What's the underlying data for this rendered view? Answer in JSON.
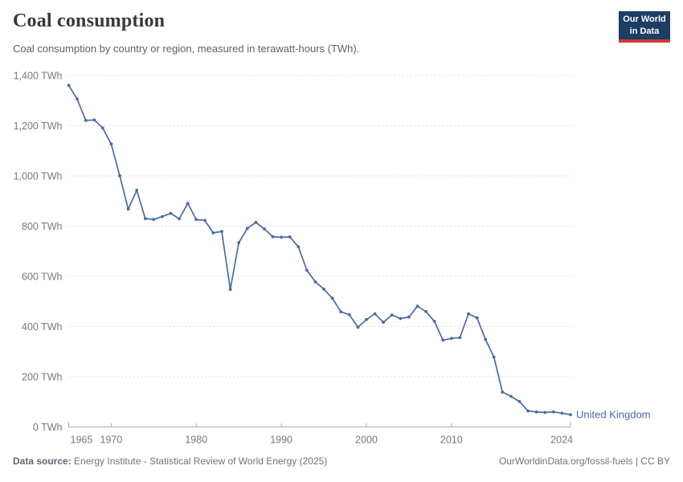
{
  "header": {
    "title": "Coal consumption",
    "subtitle": "Coal consumption by country or region, measured in terawatt-hours (TWh).",
    "logo": {
      "line1": "Our World",
      "line2": "in Data"
    }
  },
  "chart_data": {
    "type": "line",
    "title": "Coal consumption",
    "entity_label": "United Kingdom",
    "unit": "TWh",
    "xlabel": "",
    "ylabel": "TWh",
    "xlim": [
      1965,
      2024
    ],
    "ylim": [
      0,
      1400
    ],
    "xticks": [
      1965,
      1970,
      1980,
      1990,
      2000,
      2010,
      2024
    ],
    "yticks": [
      0,
      200,
      400,
      600,
      800,
      1000,
      1200,
      1400
    ],
    "ytick_suffix": " TWh",
    "grid": "horizontal-dashed",
    "legend_position": "end-of-line-label",
    "x": [
      1965,
      1966,
      1967,
      1968,
      1969,
      1970,
      1971,
      1972,
      1973,
      1974,
      1975,
      1976,
      1977,
      1978,
      1979,
      1980,
      1981,
      1982,
      1983,
      1984,
      1985,
      1986,
      1987,
      1988,
      1989,
      1990,
      1991,
      1992,
      1993,
      1994,
      1995,
      1996,
      1997,
      1998,
      1999,
      2000,
      2001,
      2002,
      2003,
      2004,
      2005,
      2006,
      2007,
      2008,
      2009,
      2010,
      2011,
      2012,
      2013,
      2014,
      2015,
      2016,
      2017,
      2018,
      2019,
      2020,
      2021,
      2022,
      2023,
      2024
    ],
    "values": [
      1361,
      1306,
      1221,
      1223,
      1191,
      1127,
      1001,
      868,
      943,
      830,
      827,
      838,
      851,
      829,
      891,
      826,
      823,
      773,
      779,
      548,
      734,
      791,
      815,
      789,
      758,
      756,
      757,
      718,
      624,
      578,
      549,
      513,
      459,
      447,
      397,
      428,
      451,
      417,
      446,
      432,
      438,
      481,
      460,
      421,
      346,
      353,
      356,
      451,
      435,
      349,
      278,
      139,
      122,
      101,
      64,
      60,
      58,
      60,
      55,
      49
    ],
    "colors": {
      "line": "#4b6ba6",
      "grid": "#dbdde0",
      "axis": "#a7acb1",
      "tick_text": "#707a83"
    }
  },
  "footer": {
    "source_label": "Data source:",
    "source_text": " Energy Institute - Statistical Review of World Energy (2025)",
    "url": "OurWorldinData.org/fossil-fuels",
    "separator": " | ",
    "license": "CC BY"
  }
}
